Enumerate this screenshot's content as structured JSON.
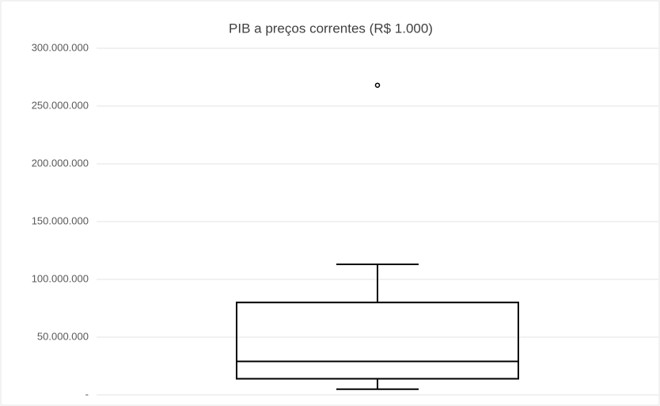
{
  "chart_data": {
    "type": "box",
    "title": "PIB a preços correntes (R$ 1.000)",
    "boxes": [
      {
        "min": 5000000,
        "q1": 14000000,
        "median": 29000000,
        "q3": 80000000,
        "max": 113000000,
        "outliers": [
          268000000
        ]
      }
    ],
    "ylim": [
      0,
      300000000
    ],
    "yticks": [
      {
        "value": 0,
        "label": "-"
      },
      {
        "value": 50000000,
        "label": "50.000.000"
      },
      {
        "value": 100000000,
        "label": "100.000.000"
      },
      {
        "value": 150000000,
        "label": "150.000.000"
      },
      {
        "value": 200000000,
        "label": "200.000.000"
      },
      {
        "value": 250000000,
        "label": "250.000.000"
      },
      {
        "value": 300000000,
        "label": "300.000.000"
      }
    ],
    "grid": true,
    "color": "#000000"
  }
}
